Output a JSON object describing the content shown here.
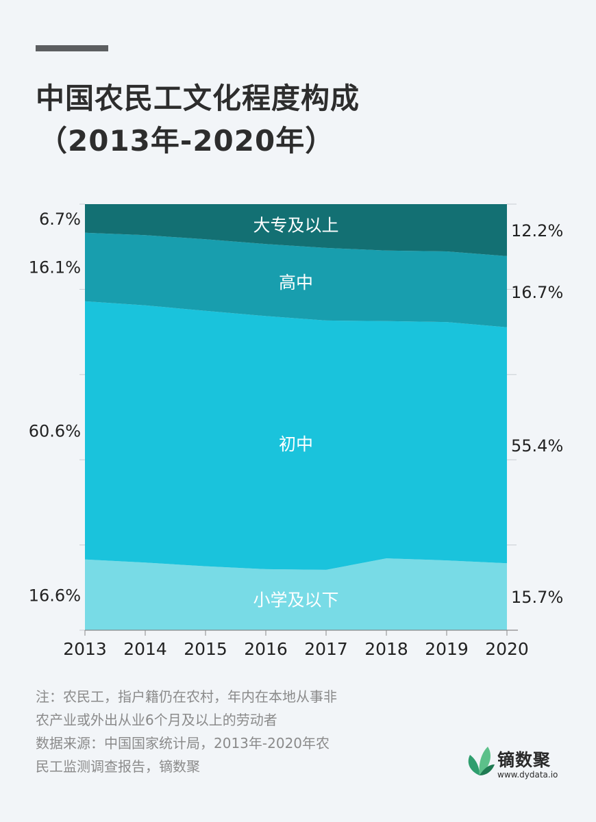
{
  "title": {
    "line1": "中国农民工文化程度构成",
    "line2": "（2013年-2020年）"
  },
  "notes": [
    "注：农民工，指户籍仍在农村，年内在本地从事非",
    "农产业或外出从业6个月及以上的劳动者",
    "数据来源：中国国家统计局，2013年-2020年农",
    "民工监测调查报告，镝数聚"
  ],
  "brand": {
    "name": "镝数聚",
    "url": "www.dydata.io"
  },
  "chart_data": {
    "type": "area",
    "stacked": true,
    "normalized_to_percent": true,
    "x": [
      "2013",
      "2014",
      "2015",
      "2016",
      "2017",
      "2018",
      "2019",
      "2020"
    ],
    "ylim": [
      0,
      100
    ],
    "series": [
      {
        "name": "小学及以下",
        "values": [
          16.6,
          15.9,
          15.1,
          14.4,
          14.2,
          16.9,
          16.4,
          15.7
        ],
        "color": "#78dbe6",
        "left_label": "16.6%",
        "right_label": "15.7%"
      },
      {
        "name": "初中",
        "values": [
          60.6,
          60.5,
          60.3,
          59.7,
          58.7,
          55.8,
          56.0,
          55.4
        ],
        "color": "#1ac3dc",
        "left_label": "60.6%",
        "right_label": "55.4%"
      },
      {
        "name": "高中",
        "values": [
          16.1,
          16.5,
          16.9,
          17.0,
          17.1,
          16.6,
          16.6,
          16.7
        ],
        "color": "#189eae",
        "left_label": "16.1%",
        "right_label": "16.7%"
      },
      {
        "name": "大专及以上",
        "values": [
          6.7,
          7.3,
          8.3,
          9.4,
          10.3,
          10.9,
          11.1,
          12.2
        ],
        "color": "#137073",
        "left_label": "6.7%",
        "right_label": "12.2%"
      }
    ]
  }
}
